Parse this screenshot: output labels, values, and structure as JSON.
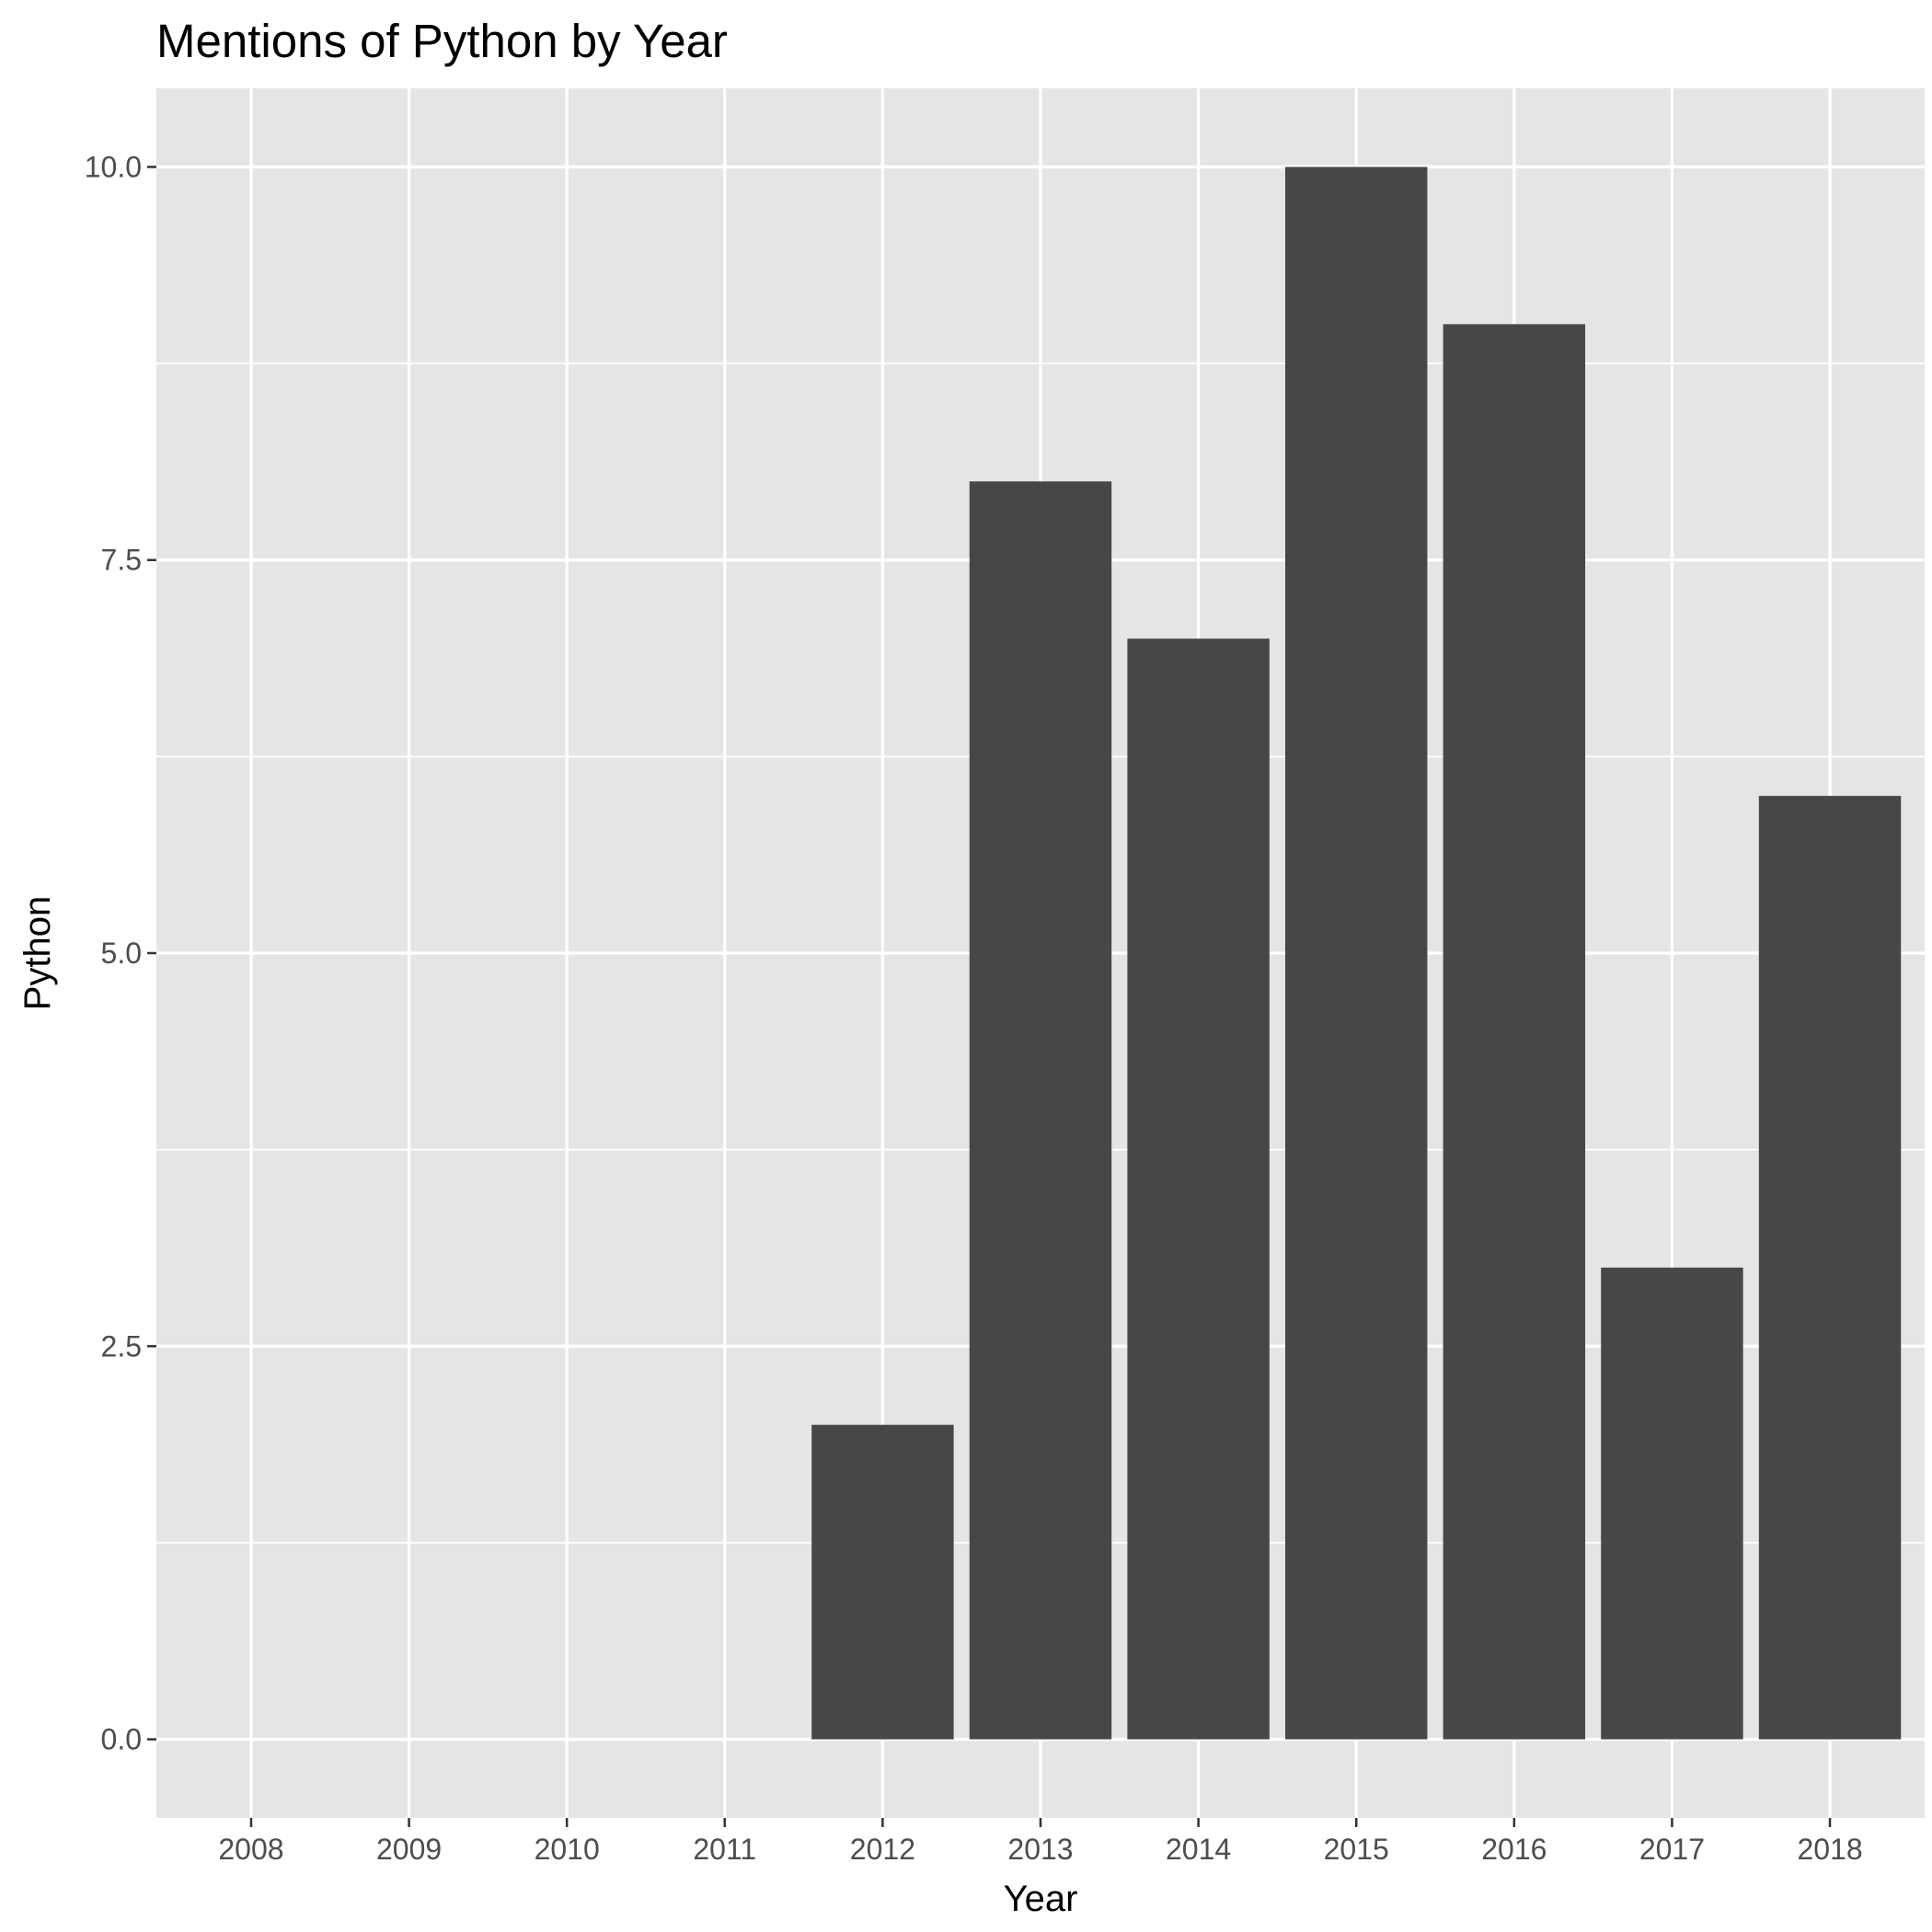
{
  "chart_data": {
    "type": "bar",
    "title": "Mentions of Python by Year",
    "xlabel": "Year",
    "ylabel": "Python",
    "categories": [
      "2008",
      "2009",
      "2010",
      "2011",
      "2012",
      "2013",
      "2014",
      "2015",
      "2016",
      "2017",
      "2018"
    ],
    "values": [
      0,
      0,
      0,
      0,
      2,
      8,
      7,
      10,
      9,
      3,
      6
    ],
    "ylim": [
      -0.5,
      10.5
    ],
    "yticks": [
      0,
      2.5,
      5,
      7.5,
      10
    ],
    "ytick_labels": [
      "0.0",
      "2.5",
      "5.0",
      "7.5",
      "10.0"
    ],
    "grid": true,
    "colors": {
      "panel_background": "#e5e5e5",
      "grid": "#ffffff",
      "bar_fill": "#474747",
      "tick_label": "#4d4d4d",
      "text": "#000000"
    }
  }
}
